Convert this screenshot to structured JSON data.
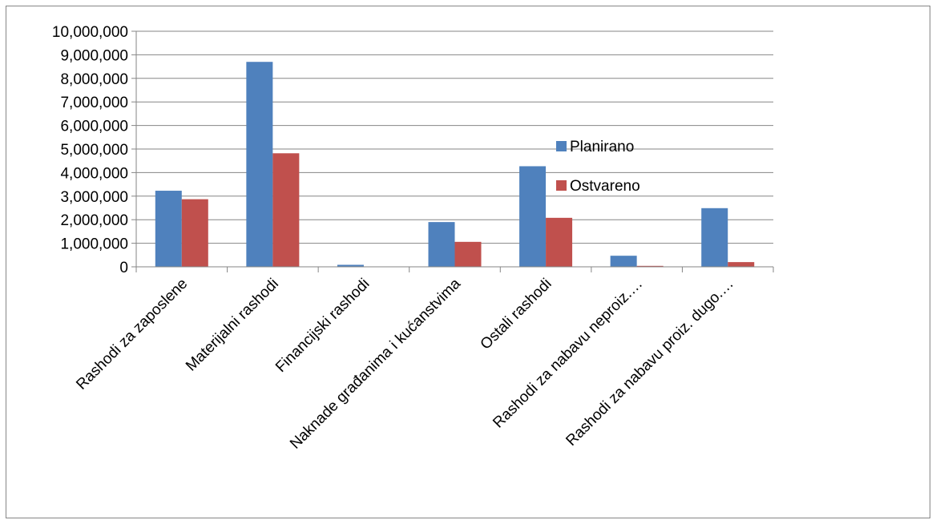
{
  "chart_data": {
    "type": "bar",
    "title": "",
    "xlabel": "",
    "ylabel": "",
    "ylim": [
      0,
      10000000
    ],
    "yticks": [
      0,
      1000000,
      2000000,
      3000000,
      4000000,
      5000000,
      6000000,
      7000000,
      8000000,
      9000000,
      10000000
    ],
    "yticks_labels": [
      "0",
      "1,000,000",
      "2,000,000",
      "3,000,000",
      "4,000,000",
      "5,000,000",
      "6,000,000",
      "7,000,000",
      "8,000,000",
      "9,000,000",
      "10,000,000"
    ],
    "grid": true,
    "legend_position": "right",
    "categories": [
      "Rashodi za zaposlene",
      "Materijalni rashodi",
      "Financijski rashodi",
      "Naknade građanima i kućanstvima",
      "Ostali rashodi",
      "Rashodi za nabavu neproiz.…",
      "Rashodi za nabavu proiz. dugo.…"
    ],
    "series": [
      {
        "name": "Planirano",
        "color": "#4F81BD",
        "values": [
          3230000,
          8700000,
          85000,
          1900000,
          4270000,
          470000,
          2490000
        ]
      },
      {
        "name": "Ostvareno",
        "color": "#C0504D",
        "values": [
          2870000,
          4820000,
          10000,
          1060000,
          2080000,
          40000,
          200000
        ]
      }
    ]
  }
}
